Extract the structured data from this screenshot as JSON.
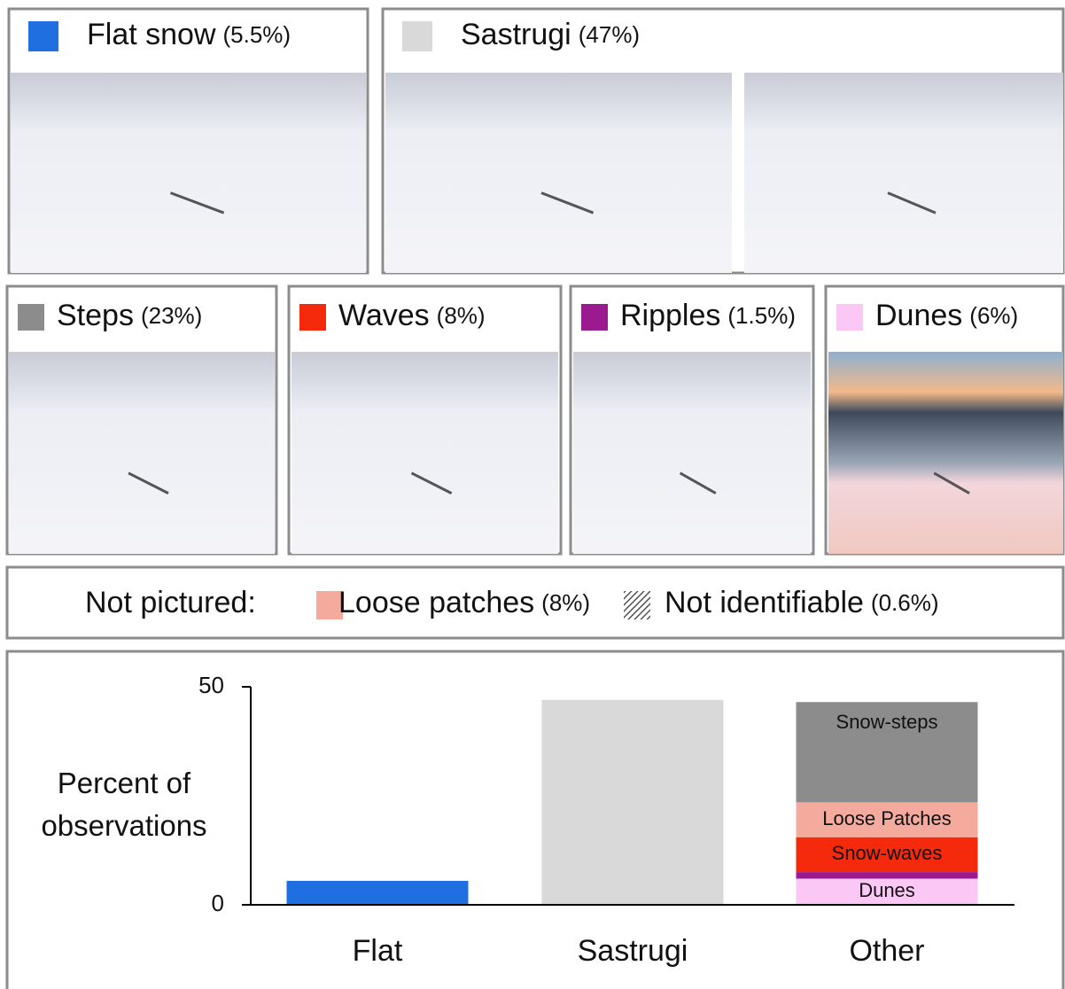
{
  "panels": [
    {
      "label": "Flat snow",
      "pct": "(5.5%)",
      "color": "#1f6fe0"
    },
    {
      "label": "Sastrugi",
      "pct": "(47%)",
      "color": "#d9d9d9"
    },
    {
      "label": "Steps",
      "pct": "(23%)",
      "color": "#8c8c8c"
    },
    {
      "label": "Waves",
      "pct": "(8%)",
      "color": "#f52a0c"
    },
    {
      "label": "Ripples",
      "pct": "(1.5%)",
      "color": "#9b1a8f"
    },
    {
      "label": "Dunes",
      "pct": "(6%)",
      "color": "#fbc8f5"
    }
  ],
  "not_pictured": {
    "label": "Not pictured:",
    "items": [
      {
        "label": "Loose patches",
        "pct": "(8%)",
        "color": "#f4aa9c"
      },
      {
        "label": "Not identifiable",
        "pct": "(0.6%)",
        "pattern": "hatch"
      }
    ]
  },
  "chart_data": {
    "type": "stacked-bar",
    "ylabel": "Percent of observations",
    "categories": [
      "Flat",
      "Sastrugi",
      "Other"
    ],
    "series": [
      {
        "color": "#1f6fe0",
        "values": [
          5.5,
          null,
          null
        ]
      },
      {
        "color": "#d9d9d9",
        "values": [
          null,
          47,
          null
        ]
      },
      {
        "name": "Dunes",
        "color": "#fbc8f5",
        "values": [
          null,
          null,
          6
        ]
      },
      {
        "color": "#9b1a8f",
        "values": [
          null,
          null,
          1.5
        ]
      },
      {
        "name": "Snow-waves",
        "color": "#f52a0c",
        "values": [
          null,
          null,
          8
        ]
      },
      {
        "name": "Loose Patches",
        "color": "#f4aa9c",
        "values": [
          null,
          null,
          8
        ]
      },
      {
        "name": "Snow-steps",
        "color": "#8c8c8c",
        "values": [
          null,
          null,
          23
        ]
      }
    ],
    "ylim": [
      0,
      50
    ],
    "yticks": [
      0,
      50
    ]
  }
}
